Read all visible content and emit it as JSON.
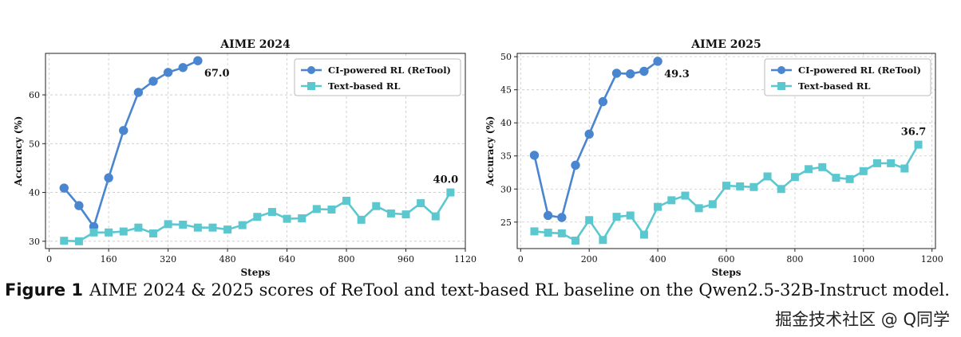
{
  "chart_data": [
    {
      "type": "line",
      "title": "AIME 2024",
      "xlabel": "Steps",
      "ylabel": "Accuracy (%)",
      "xlim": [
        -10,
        1120
      ],
      "ylim": [
        28.5,
        68.5
      ],
      "xticks": [
        0,
        160,
        320,
        480,
        640,
        800,
        960,
        1120
      ],
      "yticks": [
        30,
        40,
        50,
        60
      ],
      "grid": true,
      "legend_position": "top-right",
      "series": [
        {
          "name": "CI-powered RL (ReTool)",
          "color": "#4a86cf",
          "marker": "circle",
          "end_label": "67.0",
          "x": [
            40,
            80,
            120,
            160,
            200,
            240,
            280,
            320,
            360,
            400
          ],
          "y": [
            40.9,
            37.3,
            33.0,
            43.0,
            52.7,
            60.5,
            62.8,
            64.6,
            65.6,
            67.0
          ]
        },
        {
          "name": "Text-based RL",
          "color": "#5bc8cf",
          "marker": "square",
          "end_label": "40.0",
          "x": [
            40,
            80,
            120,
            160,
            200,
            240,
            280,
            320,
            360,
            400,
            440,
            480,
            520,
            560,
            600,
            640,
            680,
            720,
            760,
            800,
            840,
            880,
            920,
            960,
            1000,
            1040,
            1080
          ],
          "y": [
            30.1,
            30.0,
            31.8,
            31.8,
            32.0,
            32.8,
            31.6,
            33.5,
            33.4,
            32.8,
            32.8,
            32.4,
            33.3,
            35.0,
            36.0,
            34.6,
            34.7,
            36.6,
            36.5,
            38.3,
            34.4,
            37.2,
            35.7,
            35.5,
            37.8,
            35.1,
            40.0
          ]
        }
      ]
    },
    {
      "type": "line",
      "title": "AIME 2025",
      "xlabel": "Steps",
      "ylabel": "Accuracy (%)",
      "xlim": [
        -10,
        1210
      ],
      "ylim": [
        21.0,
        50.5
      ],
      "xticks": [
        0,
        200,
        400,
        600,
        800,
        1000,
        1200
      ],
      "yticks": [
        25,
        30,
        35,
        40,
        45,
        50
      ],
      "grid": true,
      "legend_position": "top-right",
      "series": [
        {
          "name": "CI-powered RL (ReTool)",
          "color": "#4a86cf",
          "marker": "circle",
          "end_label": "49.3",
          "x": [
            40,
            80,
            120,
            160,
            200,
            240,
            280,
            320,
            360,
            400
          ],
          "y": [
            35.1,
            26.0,
            25.7,
            33.6,
            38.3,
            43.2,
            47.5,
            47.4,
            47.8,
            49.3
          ]
        },
        {
          "name": "Text-based RL",
          "color": "#5bc8cf",
          "marker": "square",
          "end_label": "36.7",
          "x": [
            40,
            80,
            120,
            160,
            200,
            240,
            280,
            320,
            360,
            400,
            440,
            480,
            520,
            560,
            600,
            640,
            680,
            720,
            760,
            800,
            840,
            880,
            920,
            960,
            1000,
            1040,
            1080,
            1120,
            1160
          ],
          "y": [
            23.6,
            23.4,
            23.3,
            22.2,
            25.3,
            22.3,
            25.8,
            26.0,
            23.1,
            27.3,
            28.3,
            29.0,
            27.1,
            27.7,
            30.5,
            30.4,
            30.3,
            31.9,
            30.0,
            31.8,
            33.0,
            33.3,
            31.7,
            31.5,
            32.7,
            33.9,
            33.9,
            33.1,
            36.7
          ]
        }
      ]
    }
  ],
  "caption": {
    "label": "Figure 1",
    "text": "AIME 2024 & 2025 scores of ReTool and text-based RL baseline on the Qwen2.5-32B-Instruct model."
  },
  "watermark": "掘金技术社区 @ Q同学"
}
